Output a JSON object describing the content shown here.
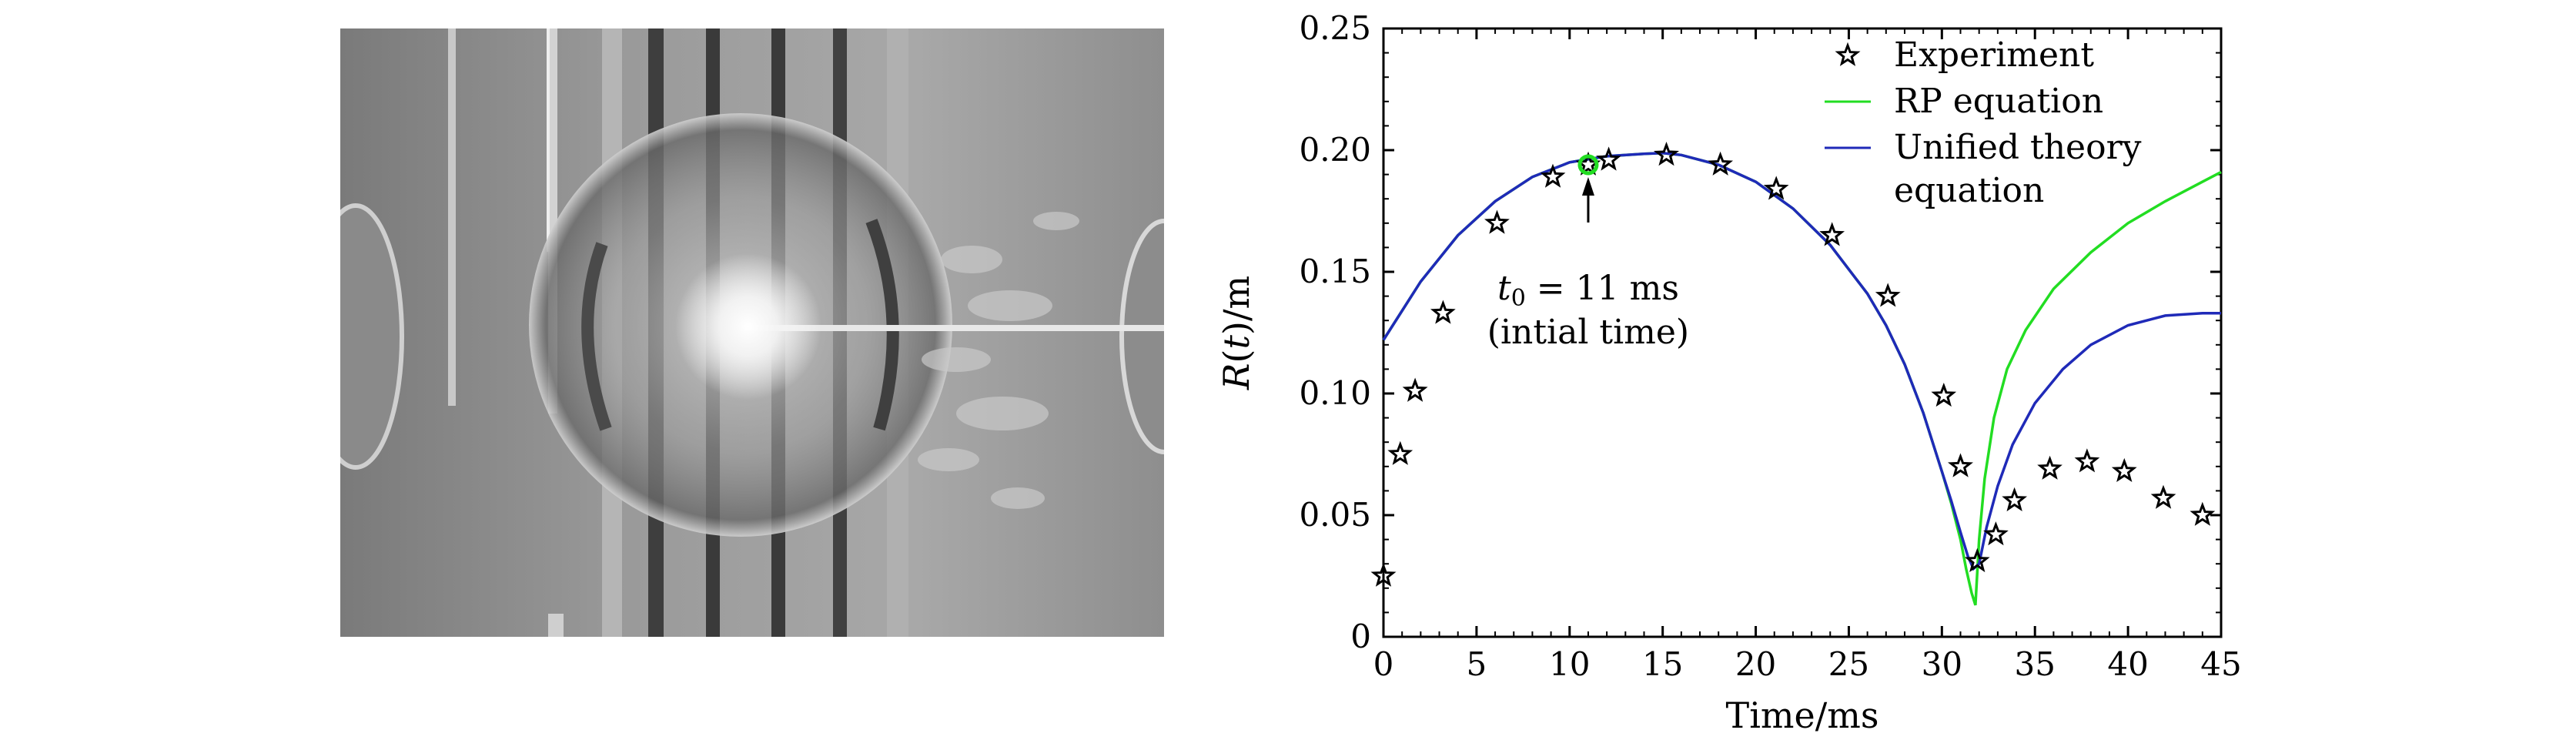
{
  "photo": {
    "description_icon": "photo-bubble-experiment"
  },
  "chart_data": {
    "type": "scatter",
    "xlabel": "Time/ms",
    "ylabel_main": "R",
    "ylabel_var": "t",
    "ylabel_unit": "/m",
    "xlim": [
      0,
      45
    ],
    "ylim": [
      0,
      0.25
    ],
    "xticks": [
      "0",
      "5",
      "10",
      "15",
      "20",
      "25",
      "30",
      "35",
      "40",
      "45"
    ],
    "yticks": [
      "0",
      "0.05",
      "0.10",
      "0.15",
      "0.20",
      "0.25"
    ],
    "legend_position": "top-right",
    "annotation": {
      "line1_var": "t",
      "line1_sub": "0",
      "line1_rest": " = 11 ms",
      "line2": "(intial time)",
      "x": 11,
      "y": 0.194
    },
    "series": [
      {
        "name": "Experiment",
        "marker": "star",
        "color": "#000000",
        "x": [
          0.0,
          0.9,
          1.7,
          3.2,
          6.1,
          9.1,
          11.0,
          12.1,
          15.2,
          18.1,
          21.1,
          24.1,
          27.1,
          30.1,
          31.0,
          31.9,
          32.9,
          33.9,
          35.8,
          37.8,
          39.8,
          41.9,
          44.0
        ],
        "y": [
          0.025,
          0.075,
          0.101,
          0.133,
          0.17,
          0.189,
          0.194,
          0.196,
          0.198,
          0.194,
          0.184,
          0.165,
          0.14,
          0.099,
          0.07,
          0.031,
          0.042,
          0.056,
          0.069,
          0.072,
          0.068,
          0.057,
          0.05
        ]
      },
      {
        "name": "RP equation",
        "line": true,
        "color": "#22dd22",
        "x": [
          0,
          2,
          4,
          6,
          8,
          10,
          12,
          14,
          15,
          16,
          18,
          20,
          22,
          24,
          26,
          27,
          28,
          29,
          30,
          30.5,
          31,
          31.3,
          31.6,
          31.8,
          32.0,
          32.3,
          32.8,
          33.5,
          34.5,
          36,
          38,
          40,
          42,
          44,
          45
        ],
        "y": [
          0.122,
          0.146,
          0.165,
          0.179,
          0.189,
          0.195,
          0.1975,
          0.1985,
          0.1988,
          0.198,
          0.194,
          0.187,
          0.176,
          0.161,
          0.141,
          0.128,
          0.112,
          0.092,
          0.068,
          0.055,
          0.04,
          0.028,
          0.018,
          0.013,
          0.04,
          0.065,
          0.09,
          0.11,
          0.126,
          0.143,
          0.158,
          0.17,
          0.179,
          0.187,
          0.191
        ]
      },
      {
        "name": "Unified theory equation",
        "line": true,
        "color": "#1f2ab8",
        "x": [
          0,
          2,
          4,
          6,
          8,
          10,
          12,
          14,
          15,
          16,
          18,
          20,
          22,
          24,
          26,
          27,
          28,
          29,
          30,
          30.5,
          31,
          31.4,
          31.7,
          32.0,
          32.4,
          33.0,
          33.8,
          35,
          36.5,
          38,
          40,
          42,
          44,
          45
        ],
        "y": [
          0.122,
          0.146,
          0.165,
          0.179,
          0.189,
          0.195,
          0.1975,
          0.1985,
          0.1988,
          0.198,
          0.194,
          0.187,
          0.176,
          0.161,
          0.141,
          0.128,
          0.112,
          0.092,
          0.068,
          0.056,
          0.043,
          0.033,
          0.028,
          0.03,
          0.045,
          0.062,
          0.079,
          0.096,
          0.11,
          0.12,
          0.128,
          0.132,
          0.133,
          0.133
        ]
      }
    ]
  }
}
